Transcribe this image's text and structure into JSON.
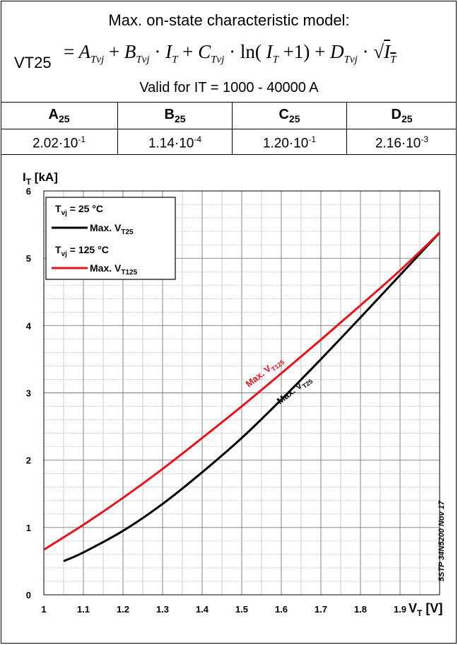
{
  "model": {
    "title": "Max. on-state characteristic model:",
    "lhs": "VT25",
    "valid_text": "Valid for IT = 1000 - 40000 A"
  },
  "coefficients": {
    "headers": [
      {
        "letter": "A",
        "sub": "25"
      },
      {
        "letter": "B",
        "sub": "25"
      },
      {
        "letter": "C",
        "sub": "25"
      },
      {
        "letter": "D",
        "sub": "25"
      }
    ],
    "values": [
      {
        "mantissa": "2.02·10",
        "exp": "-1"
      },
      {
        "mantissa": "1.14·10",
        "exp": "-4"
      },
      {
        "mantissa": "1.20·10",
        "exp": "-1"
      },
      {
        "mantissa": "2.16·10",
        "exp": "-3"
      }
    ]
  },
  "chart_data": {
    "type": "line",
    "ylabel": "I",
    "ylabel_sub": "T",
    "ylabel_unit": " [kA]",
    "xlabel": "V",
    "xlabel_sub": "T",
    "xlabel_unit": " [V]",
    "xlim": [
      1,
      2.0
    ],
    "ylim": [
      0,
      6
    ],
    "x_ticks": [
      "1",
      "1.1",
      "1.2",
      "1.3",
      "1.4",
      "1.5",
      "1.6",
      "1.7",
      "1.8",
      "1.9"
    ],
    "y_ticks": [
      "0",
      "1",
      "2",
      "3",
      "4",
      "5",
      "6"
    ],
    "grid": true,
    "legend_position": "top-left",
    "legend": [
      {
        "condition": "T",
        "condition_sub": "vj",
        "condition_value": " = 25 °C",
        "name": "Max. V",
        "name_sub": "T25",
        "color": "#000000"
      },
      {
        "condition": "T",
        "condition_sub": "vj",
        "condition_value": " = 125 °C",
        "name": "Max. V",
        "name_sub": "T125",
        "color": "#e8141c"
      }
    ],
    "series": [
      {
        "name": "Max. VT25",
        "color": "#000000",
        "points": [
          [
            1.05,
            0.5
          ],
          [
            1.1,
            0.63
          ],
          [
            1.2,
            0.95
          ],
          [
            1.3,
            1.35
          ],
          [
            1.4,
            1.82
          ],
          [
            1.5,
            2.33
          ],
          [
            1.6,
            2.9
          ],
          [
            1.7,
            3.5
          ],
          [
            1.8,
            4.12
          ],
          [
            1.9,
            4.75
          ],
          [
            2.0,
            5.38
          ]
        ]
      },
      {
        "name": "Max. VT125",
        "color": "#e8141c",
        "points": [
          [
            1.0,
            0.67
          ],
          [
            1.1,
            1.04
          ],
          [
            1.2,
            1.44
          ],
          [
            1.3,
            1.87
          ],
          [
            1.4,
            2.33
          ],
          [
            1.5,
            2.8
          ],
          [
            1.6,
            3.29
          ],
          [
            1.7,
            3.79
          ],
          [
            1.8,
            4.3
          ],
          [
            1.9,
            4.82
          ],
          [
            2.0,
            5.38
          ]
        ]
      }
    ],
    "curve_labels": [
      {
        "text": "Max. V",
        "sub": "T125",
        "color": "#e8141c"
      },
      {
        "text": "Max. V",
        "sub": "T25",
        "color": "#000000"
      }
    ],
    "side_note": "5STP 34N5200 Nov 17"
  }
}
